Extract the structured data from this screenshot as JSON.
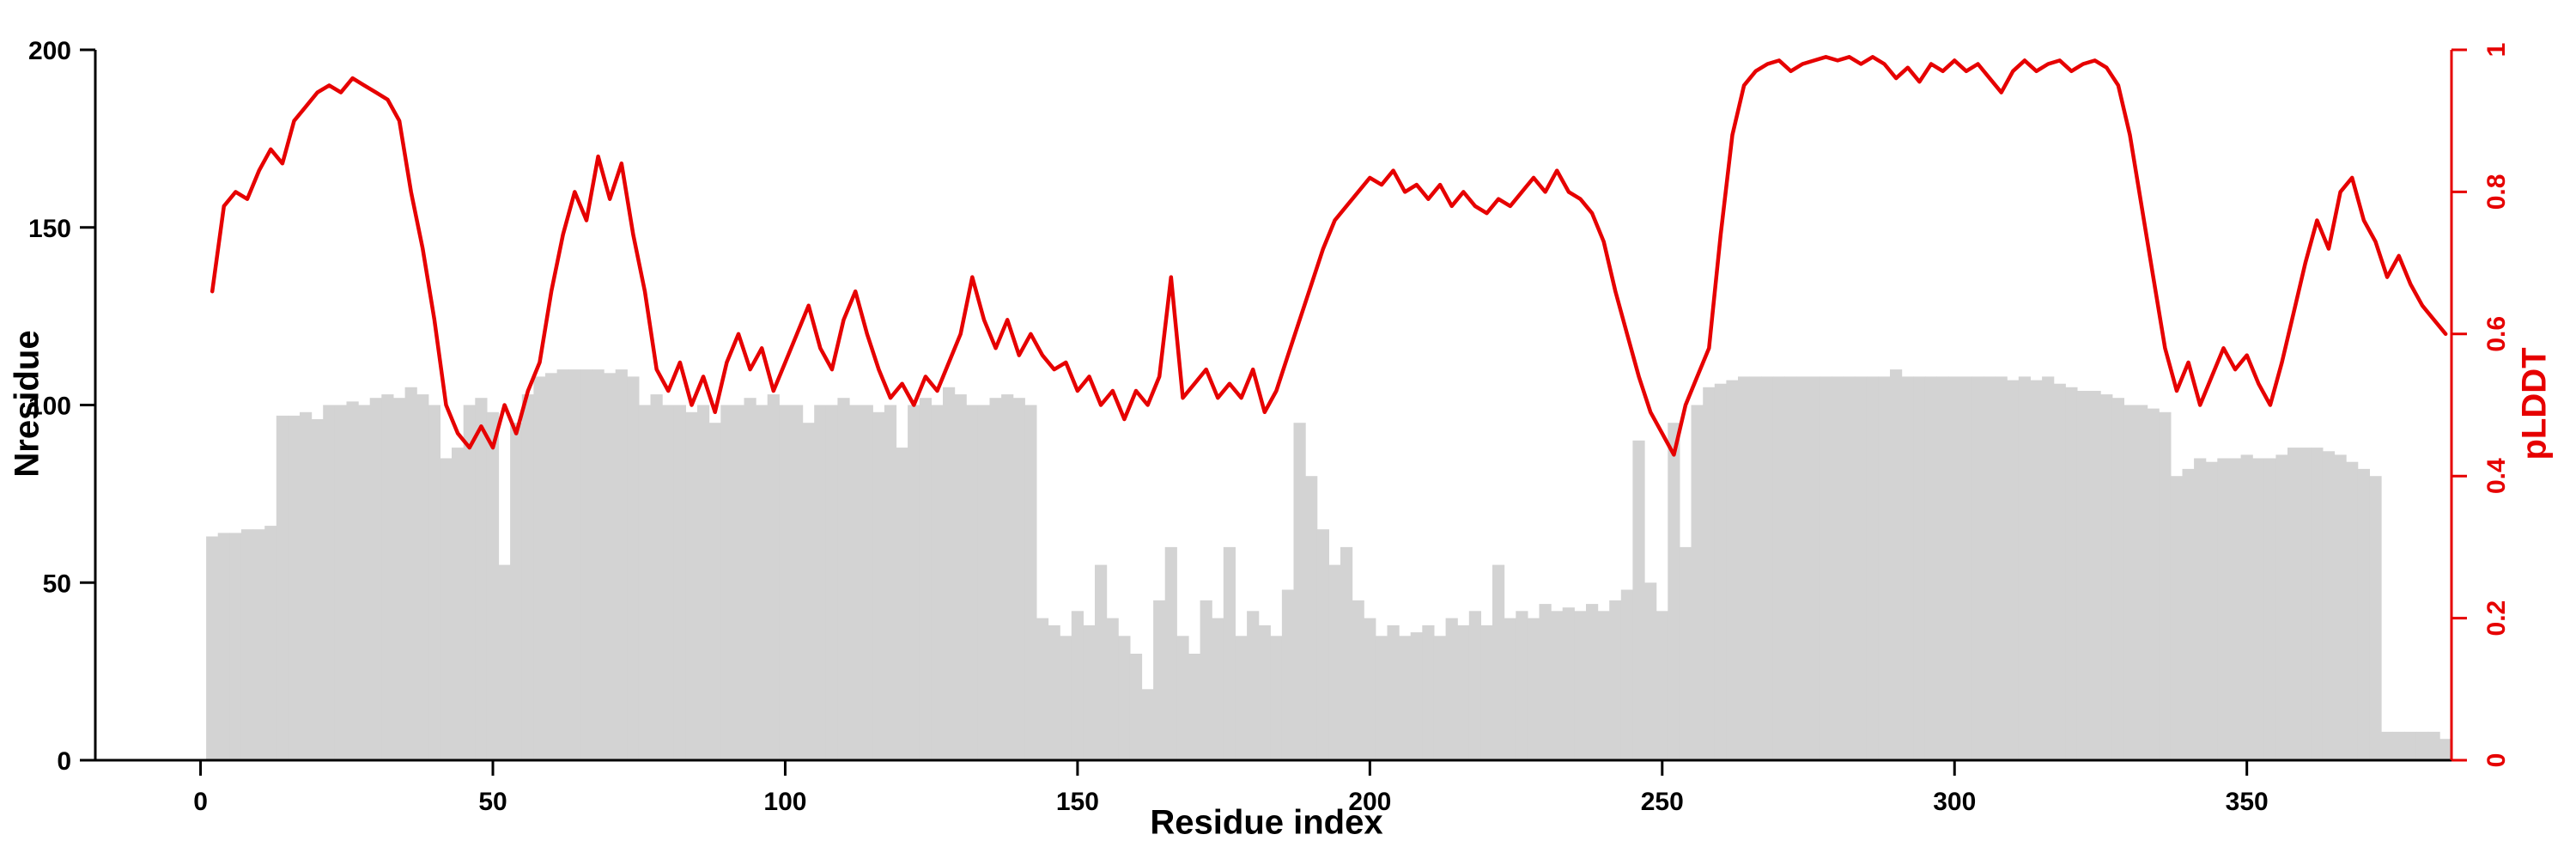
{
  "chart_data": {
    "type": "bar",
    "title": "",
    "xlabel": "Residue index",
    "ylabel_left": "Nresidue",
    "ylabel_right": "pLDDT",
    "xlim": [
      -18,
      385
    ],
    "ylim_left": [
      0,
      200
    ],
    "ylim_right": [
      0,
      1
    ],
    "x_ticks": [
      0,
      50,
      100,
      150,
      200,
      250,
      300,
      350
    ],
    "y_ticks_left": [
      0,
      50,
      100,
      150,
      200
    ],
    "y_ticks_right_values": [
      0,
      0.2,
      0.4,
      0.6,
      0.8,
      1
    ],
    "y_ticks_right_labels": [
      "0",
      "0.2",
      "0.4",
      "0.6",
      "0.8",
      "1"
    ],
    "grid": false,
    "legend": "none",
    "colors": {
      "bar": "#d3d3d3",
      "line": "#e60000",
      "axis_left": "#000000",
      "axis_right": "#e60000",
      "background": "#ffffff"
    },
    "x": [
      2,
      4,
      6,
      8,
      10,
      12,
      14,
      16,
      18,
      20,
      22,
      24,
      26,
      28,
      30,
      32,
      34,
      36,
      38,
      40,
      42,
      44,
      46,
      48,
      50,
      52,
      54,
      56,
      58,
      60,
      62,
      64,
      66,
      68,
      70,
      72,
      74,
      76,
      78,
      80,
      82,
      84,
      86,
      88,
      90,
      92,
      94,
      96,
      98,
      100,
      102,
      104,
      106,
      108,
      110,
      112,
      114,
      116,
      118,
      120,
      122,
      124,
      126,
      128,
      130,
      132,
      134,
      136,
      138,
      140,
      142,
      144,
      146,
      148,
      150,
      152,
      154,
      156,
      158,
      160,
      162,
      164,
      166,
      168,
      170,
      172,
      174,
      176,
      178,
      180,
      182,
      184,
      186,
      188,
      190,
      192,
      194,
      196,
      198,
      200,
      202,
      204,
      206,
      208,
      210,
      212,
      214,
      216,
      218,
      220,
      222,
      224,
      226,
      228,
      230,
      232,
      234,
      236,
      238,
      240,
      242,
      244,
      246,
      248,
      250,
      252,
      254,
      256,
      258,
      260,
      262,
      264,
      266,
      268,
      270,
      272,
      274,
      276,
      278,
      280,
      282,
      284,
      286,
      288,
      290,
      292,
      294,
      296,
      298,
      300,
      302,
      304,
      306,
      308,
      310,
      312,
      314,
      316,
      318,
      320,
      322,
      324,
      326,
      328,
      330,
      332,
      334,
      336,
      338,
      340,
      342,
      344,
      346,
      348,
      350,
      352,
      354,
      356,
      358,
      360,
      362,
      364,
      366,
      368,
      370,
      372,
      374,
      376,
      378,
      380,
      382,
      384
    ],
    "series": [
      {
        "name": "Nresidue",
        "render": "bar",
        "axis": "left",
        "color": "#d3d3d3",
        "values": [
          63,
          64,
          64,
          65,
          65,
          66,
          97,
          97,
          98,
          96,
          100,
          100,
          101,
          100,
          102,
          103,
          102,
          105,
          103,
          100,
          85,
          88,
          100,
          102,
          98,
          55,
          95,
          103,
          108,
          109,
          110,
          110,
          110,
          110,
          109,
          110,
          108,
          100,
          103,
          100,
          100,
          98,
          100,
          95,
          100,
          100,
          102,
          100,
          103,
          100,
          100,
          95,
          100,
          100,
          102,
          100,
          100,
          98,
          100,
          88,
          100,
          102,
          100,
          105,
          103,
          100,
          100,
          102,
          103,
          102,
          100,
          40,
          38,
          35,
          42,
          38,
          55,
          40,
          35,
          30,
          20,
          45,
          60,
          35,
          30,
          45,
          40,
          60,
          35,
          42,
          38,
          35,
          48,
          95,
          80,
          65,
          55,
          60,
          45,
          40,
          35,
          38,
          35,
          36,
          38,
          35,
          40,
          38,
          42,
          38,
          55,
          40,
          42,
          40,
          44,
          42,
          43,
          42,
          44,
          42,
          45,
          48,
          90,
          50,
          42,
          95,
          60,
          100,
          105,
          106,
          107,
          108,
          108,
          108,
          108,
          108,
          108,
          108,
          108,
          108,
          108,
          108,
          108,
          108,
          110,
          108,
          108,
          108,
          108,
          108,
          108,
          108,
          108,
          108,
          107,
          108,
          107,
          108,
          106,
          105,
          104,
          104,
          103,
          102,
          100,
          100,
          99,
          98,
          80,
          82,
          85,
          84,
          85,
          85,
          86,
          85,
          85,
          86,
          88,
          88,
          88,
          87,
          86,
          84,
          82,
          80,
          8,
          8,
          8,
          8,
          8,
          6
        ]
      },
      {
        "name": "pLDDT",
        "render": "line",
        "axis": "right",
        "color": "#e60000",
        "values": [
          0.66,
          0.78,
          0.8,
          0.79,
          0.83,
          0.86,
          0.84,
          0.9,
          0.92,
          0.94,
          0.95,
          0.94,
          0.96,
          0.95,
          0.94,
          0.93,
          0.9,
          0.8,
          0.72,
          0.62,
          0.5,
          0.46,
          0.44,
          0.47,
          0.44,
          0.5,
          0.46,
          0.52,
          0.56,
          0.66,
          0.74,
          0.8,
          0.76,
          0.85,
          0.79,
          0.84,
          0.74,
          0.66,
          0.55,
          0.52,
          0.56,
          0.5,
          0.54,
          0.49,
          0.56,
          0.6,
          0.55,
          0.58,
          0.52,
          0.56,
          0.6,
          0.64,
          0.58,
          0.55,
          0.62,
          0.66,
          0.6,
          0.55,
          0.51,
          0.53,
          0.5,
          0.54,
          0.52,
          0.56,
          0.6,
          0.68,
          0.62,
          0.58,
          0.62,
          0.57,
          0.6,
          0.57,
          0.55,
          0.56,
          0.52,
          0.54,
          0.5,
          0.52,
          0.48,
          0.52,
          0.5,
          0.54,
          0.68,
          0.51,
          0.53,
          0.55,
          0.51,
          0.53,
          0.51,
          0.55,
          0.49,
          0.52,
          0.57,
          0.62,
          0.67,
          0.72,
          0.76,
          0.78,
          0.8,
          0.82,
          0.81,
          0.83,
          0.8,
          0.81,
          0.79,
          0.81,
          0.78,
          0.8,
          0.78,
          0.77,
          0.79,
          0.78,
          0.8,
          0.82,
          0.8,
          0.83,
          0.8,
          0.79,
          0.77,
          0.73,
          0.66,
          0.6,
          0.54,
          0.49,
          0.46,
          0.43,
          0.5,
          0.54,
          0.58,
          0.74,
          0.88,
          0.95,
          0.97,
          0.98,
          0.985,
          0.97,
          0.98,
          0.985,
          0.99,
          0.985,
          0.99,
          0.98,
          0.99,
          0.98,
          0.96,
          0.975,
          0.955,
          0.98,
          0.97,
          0.985,
          0.97,
          0.98,
          0.96,
          0.94,
          0.97,
          0.985,
          0.97,
          0.98,
          0.985,
          0.97,
          0.98,
          0.985,
          0.975,
          0.95,
          0.88,
          0.78,
          0.68,
          0.58,
          0.52,
          0.56,
          0.5,
          0.54,
          0.58,
          0.55,
          0.57,
          0.53,
          0.5,
          0.56,
          0.63,
          0.7,
          0.76,
          0.72,
          0.8,
          0.82,
          0.76,
          0.73,
          0.68,
          0.71,
          0.67,
          0.64,
          0.62,
          0.6
        ]
      }
    ]
  }
}
